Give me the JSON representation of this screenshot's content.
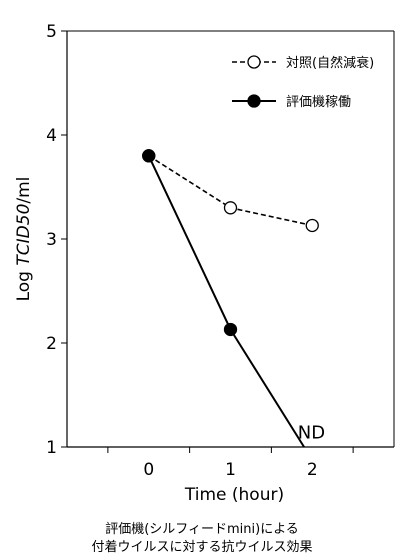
{
  "chart_data": {
    "type": "line",
    "title": "",
    "xlabel": "Time (hour)",
    "ylabel_prefix": "Log ",
    "ylabel_italic": "TCID50",
    "ylabel_suffix": "/ml",
    "xlim": [
      -1,
      3
    ],
    "ylim": [
      1,
      5
    ],
    "x_ticks": [
      0,
      1,
      2
    ],
    "y_ticks": [
      1,
      2,
      3,
      4,
      5
    ],
    "grid": false,
    "legend_position": "top-right",
    "series": [
      {
        "name": "対照(自然減衰)",
        "x": [
          0,
          1,
          2
        ],
        "y": [
          3.8,
          3.3,
          3.13
        ],
        "style": "dashed",
        "marker": "open-circle",
        "color": "#000000"
      },
      {
        "name": "評価機稼働",
        "x": [
          0,
          1,
          1.9
        ],
        "y": [
          3.8,
          2.13,
          1.0
        ],
        "style": "solid",
        "marker": "filled-circle",
        "color": "#000000"
      }
    ],
    "annotations": [
      {
        "text": "ND",
        "x": 1.99,
        "y": 1.14
      }
    ]
  },
  "caption": {
    "line1": "評価機(シルフィードmini)による",
    "line2": "付着ウイルスに対する抗ウイルス効果"
  }
}
